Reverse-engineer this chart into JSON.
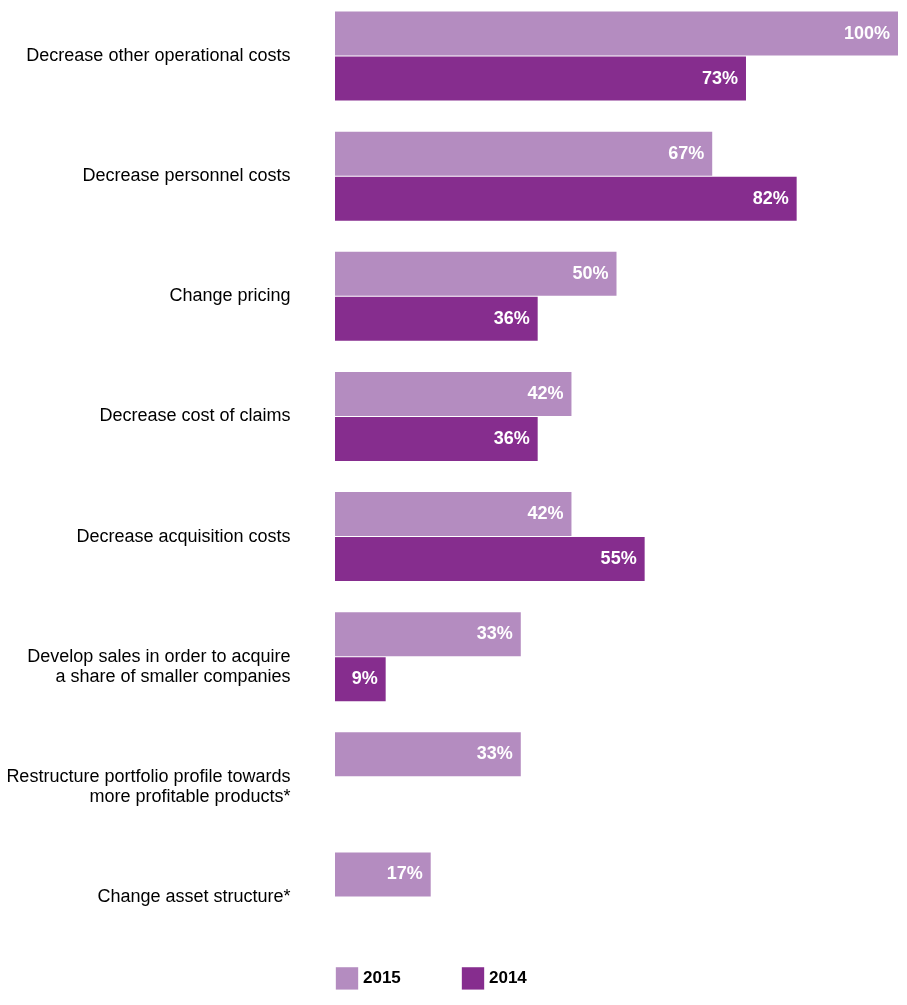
{
  "chart_data": {
    "type": "bar",
    "orientation": "horizontal",
    "grid": false,
    "legend": "bottom",
    "categories": [
      "Decrease other operational costs",
      "Decrease personnel costs",
      "Change pricing",
      "Decrease cost of claims",
      "Decrease acquisition costs",
      "Develop sales in order to acquire\na share of smaller companies",
      "Restructure portfolio profile towards\nmore profitable products*",
      "Change asset structure*"
    ],
    "series": [
      {
        "name": "2015",
        "color": "#b48cc0",
        "values": [
          100,
          67,
          50,
          42,
          42,
          33,
          33,
          17
        ],
        "value_labels": [
          "100%",
          "67%",
          "50%",
          "42%",
          "42%",
          "33%",
          "33%",
          "17%"
        ]
      },
      {
        "name": "2014",
        "color": "#862d8e",
        "values": [
          73,
          82,
          36,
          36,
          55,
          9,
          null,
          null
        ],
        "value_labels": [
          "73%",
          "82%",
          "36%",
          "36%",
          "55%",
          "9%",
          null,
          null
        ]
      }
    ]
  }
}
